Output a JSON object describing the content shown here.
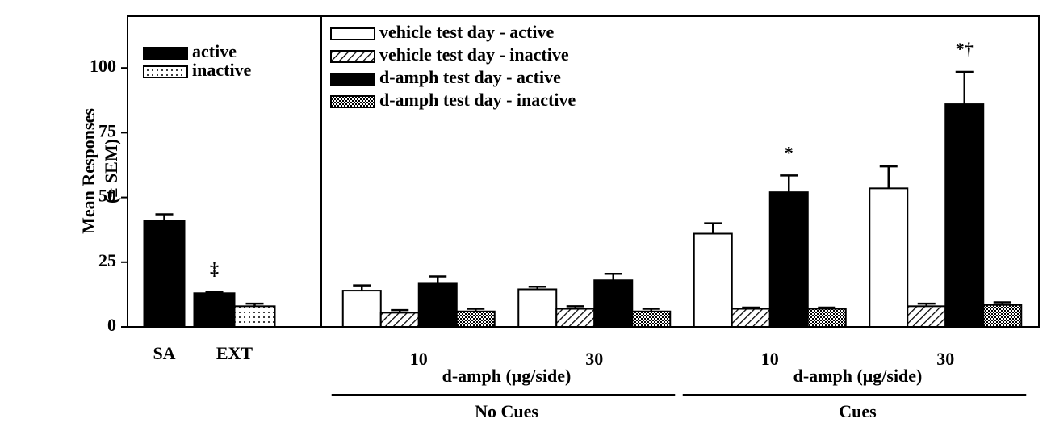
{
  "chart_data": [
    {
      "type": "bar",
      "categories": [
        "SA",
        "EXT"
      ],
      "ylabel": [
        "Mean Responses",
        "(± SEM)"
      ],
      "ylim": [
        0,
        120
      ],
      "yticks": [
        0,
        25,
        50,
        75,
        100
      ],
      "legend": "upper left",
      "series": [
        {
          "name": "active",
          "fill": "black",
          "values": [
            41,
            13
          ],
          "errors": [
            2.5,
            0.5
          ]
        },
        {
          "name": "inactive",
          "fill": "dots",
          "values": [
            null,
            8
          ],
          "errors": [
            null,
            1
          ]
        }
      ],
      "annotations": [
        {
          "text": "‡",
          "series": 0,
          "category": 1
        }
      ]
    },
    {
      "type": "bar",
      "categories": [
        "10",
        "30",
        "10",
        "30"
      ],
      "groups": [
        {
          "label": "No Cues",
          "xlabel": "d-amph (μg/side)",
          "size": 2
        },
        {
          "label": "Cues",
          "xlabel": "d-amph (μg/side)",
          "size": 2
        }
      ],
      "ylim": [
        0,
        120
      ],
      "legend": "upper left",
      "series": [
        {
          "name": "vehicle test day - active",
          "fill": "white",
          "values": [
            14,
            14.5,
            36,
            53.5
          ],
          "errors": [
            2,
            1,
            4,
            8.5
          ]
        },
        {
          "name": "vehicle test day - inactive",
          "fill": "hatch",
          "values": [
            5.5,
            7,
            7,
            8
          ],
          "errors": [
            1,
            1,
            0.5,
            1
          ]
        },
        {
          "name": "d-amph test day - active",
          "fill": "black",
          "values": [
            17,
            18,
            52,
            86
          ],
          "errors": [
            2.5,
            2.5,
            6.5,
            12.5
          ]
        },
        {
          "name": "d-amph test day - inactive",
          "fill": "checker",
          "values": [
            6,
            6,
            7,
            8.5
          ],
          "errors": [
            1,
            1,
            0.5,
            1
          ]
        }
      ],
      "annotations": [
        {
          "text": "*",
          "series": 2,
          "category": 2
        },
        {
          "text": "*†",
          "series": 2,
          "category": 3
        }
      ]
    }
  ]
}
